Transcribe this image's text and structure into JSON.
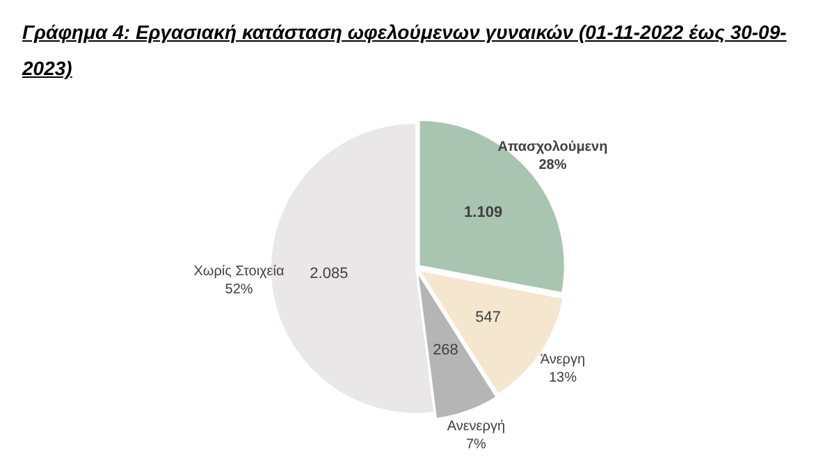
{
  "chart_data": {
    "type": "pie",
    "title": "Γράφημα 4: Εργασιακή κατάσταση ωφελούμενων γυναικών (01-11-2022 έως 30-09-2023)",
    "categories": [
      "Απασχολούμενη",
      "Άνεργη",
      "Ανενεργή",
      "Χωρίς Στοιχεία"
    ],
    "values": [
      28,
      13,
      7,
      52
    ],
    "colors": [
      "#a9c4b0",
      "#f5e6d0",
      "#b5b5b5",
      "#e9e7e7"
    ],
    "value_labels": [
      "28%",
      "13%",
      "7%",
      "52%"
    ],
    "annotations": [
      {
        "text": "1.109",
        "x": "Απασχολούμενη"
      },
      {
        "text": "547",
        "x": "Άνεργη"
      },
      {
        "text": "268",
        "x": "Ανενεργή"
      },
      {
        "text": "2.085",
        "x": "Χωρίς Στοιχεία"
      }
    ]
  }
}
